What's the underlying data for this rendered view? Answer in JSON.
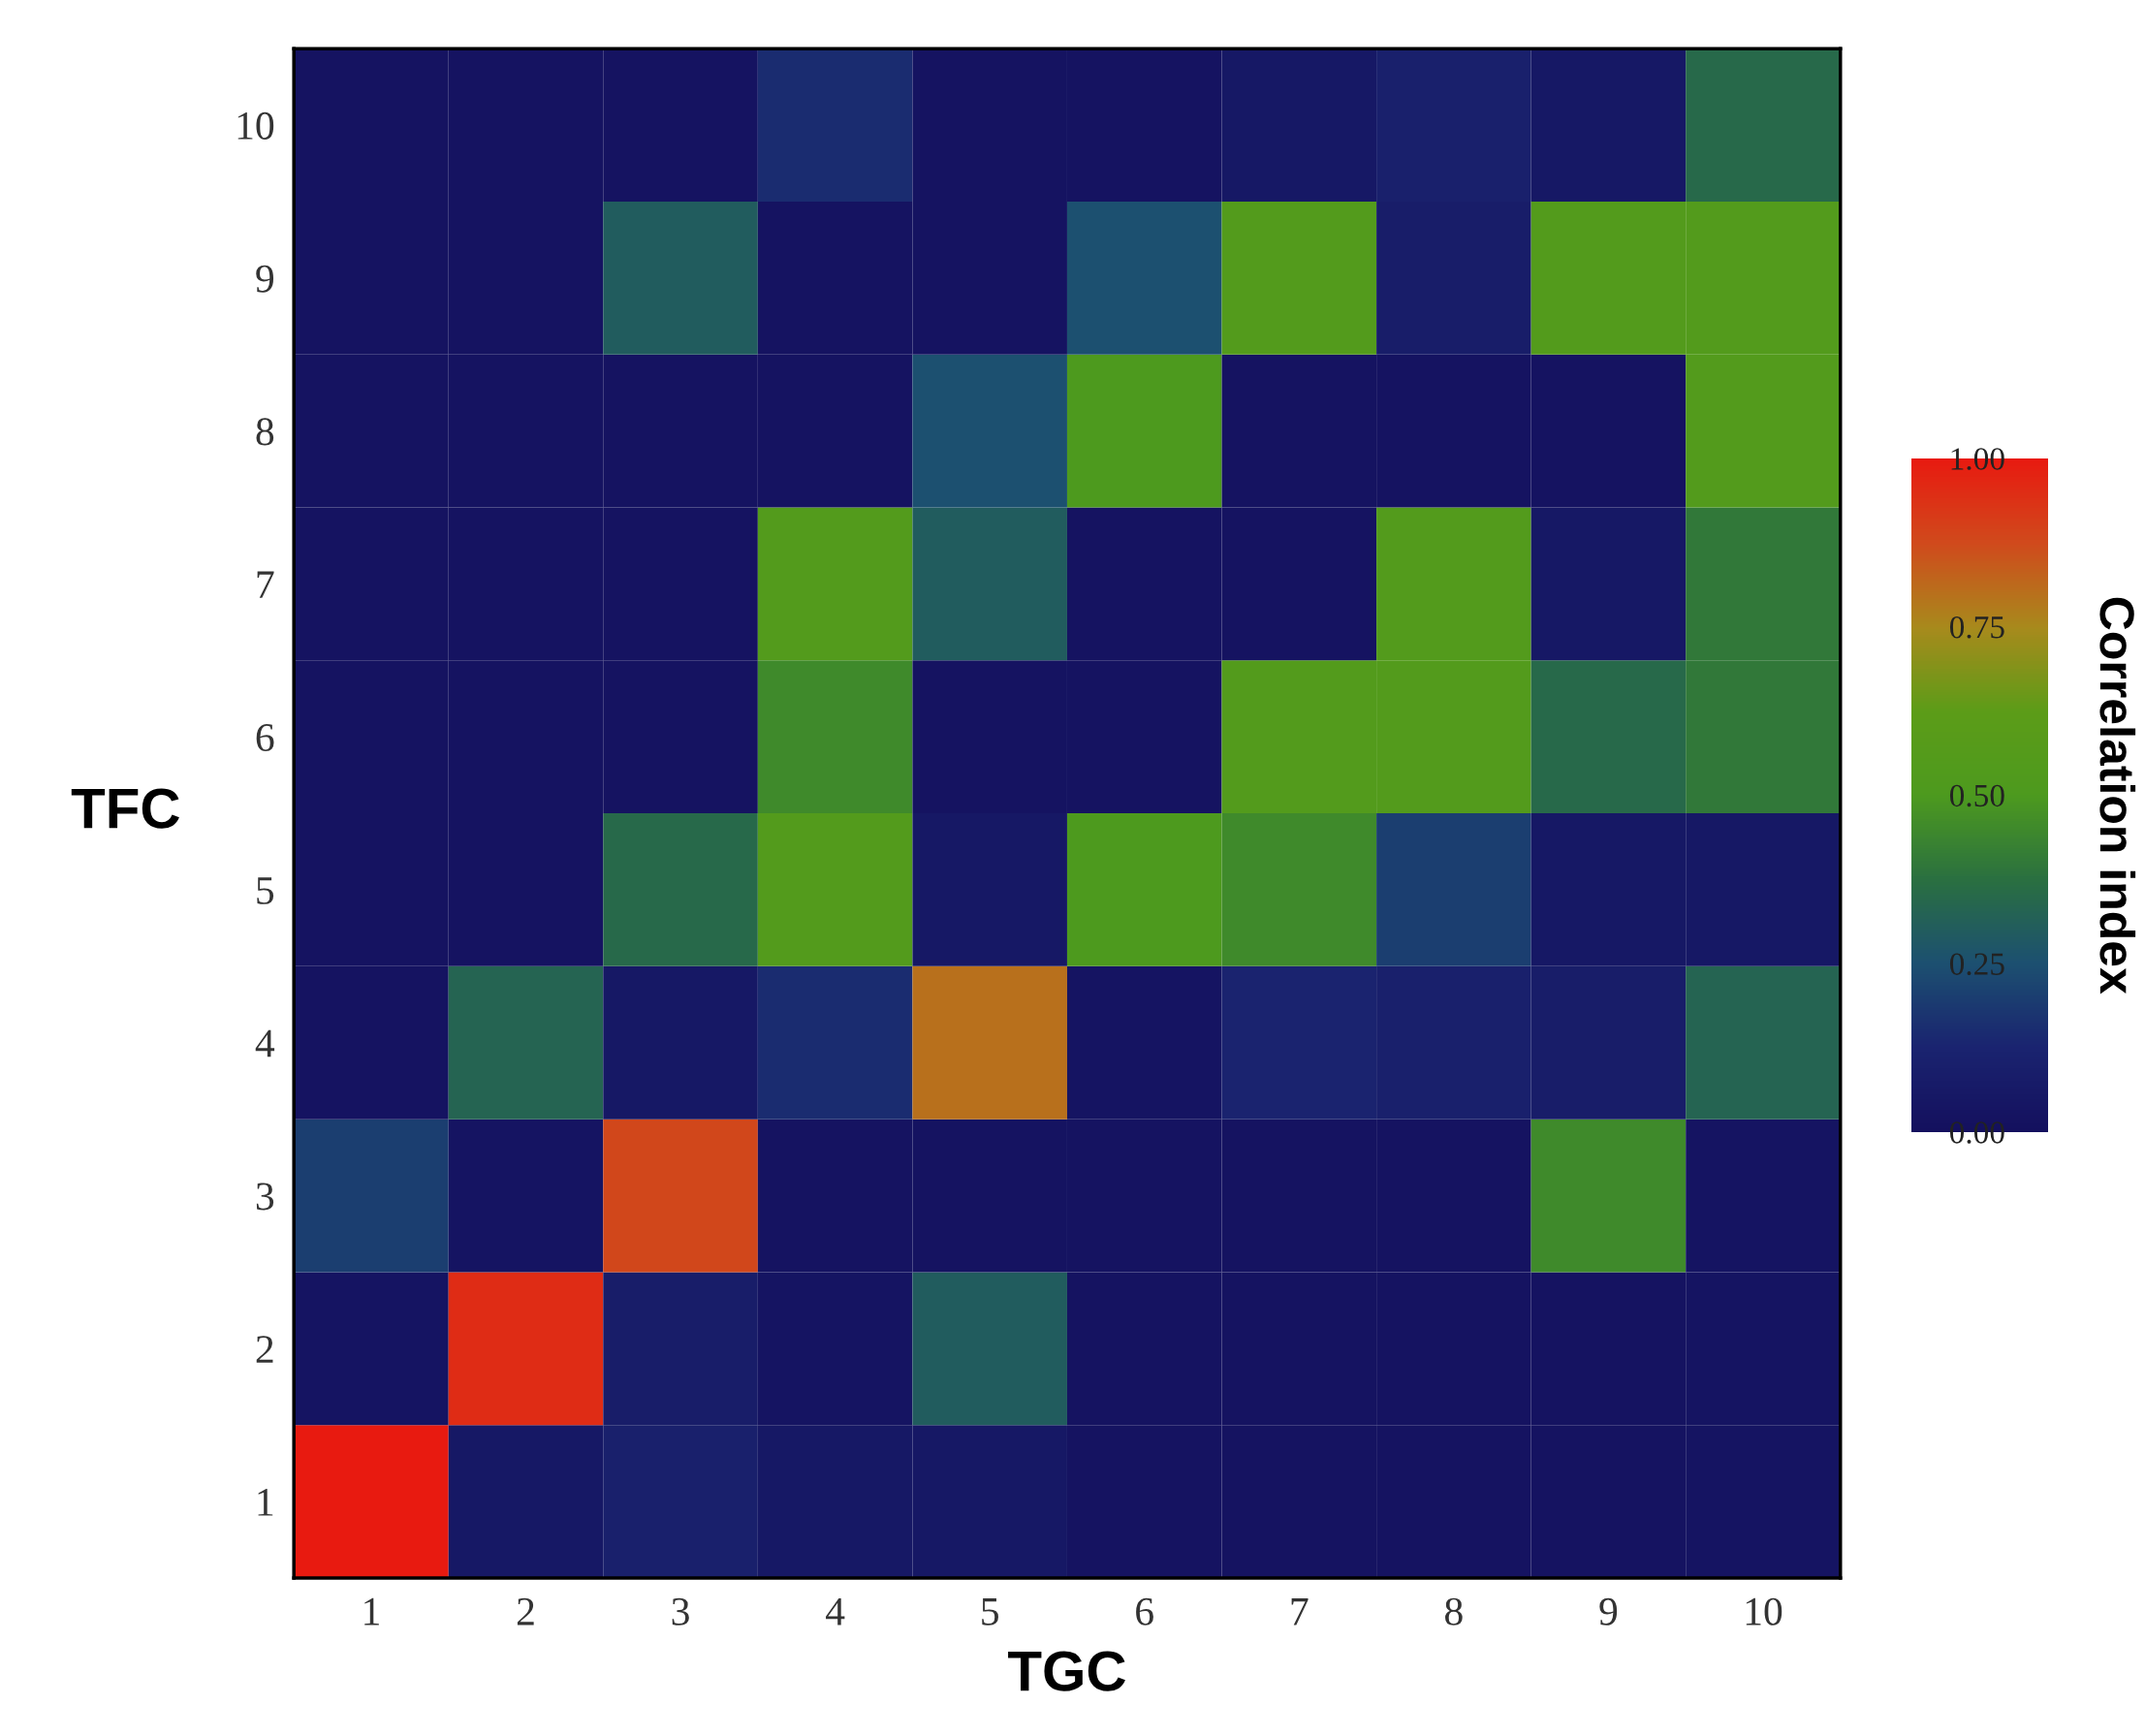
{
  "chart_data": {
    "type": "heatmap",
    "xlabel": "TGC",
    "ylabel": "TFC",
    "clabel": "Correlation index",
    "categories": [
      "1",
      "2",
      "3",
      "4",
      "5",
      "6",
      "7",
      "8",
      "9",
      "10"
    ],
    "y_categories": [
      "10",
      "9",
      "8",
      "7",
      "6",
      "5",
      "4",
      "3",
      "2",
      "1"
    ],
    "cells": [
      [
        0.02,
        0.02,
        0.02,
        0.15,
        0.02,
        0.02,
        0.05,
        0.1,
        0.05,
        0.35
      ],
      [
        0.02,
        0.02,
        0.3,
        0.02,
        0.02,
        0.25,
        0.55,
        0.08,
        0.55,
        0.55
      ],
      [
        0.02,
        0.02,
        0.02,
        0.02,
        0.25,
        0.5,
        0.02,
        0.02,
        0.02,
        0.55
      ],
      [
        0.02,
        0.02,
        0.02,
        0.55,
        0.3,
        0.02,
        0.02,
        0.55,
        0.05,
        0.4
      ],
      [
        0.02,
        0.02,
        0.02,
        0.45,
        0.02,
        0.02,
        0.55,
        0.55,
        0.35,
        0.4
      ],
      [
        0.02,
        0.02,
        0.35,
        0.55,
        0.05,
        0.5,
        0.45,
        0.2,
        0.05,
        0.05
      ],
      [
        0.02,
        0.33,
        0.05,
        0.15,
        0.8,
        0.03,
        0.12,
        0.1,
        0.08,
        0.33
      ],
      [
        0.2,
        0.03,
        0.88,
        0.02,
        0.02,
        0.02,
        0.02,
        0.02,
        0.45,
        0.03
      ],
      [
        0.03,
        0.95,
        0.08,
        0.03,
        0.3,
        0.02,
        0.02,
        0.02,
        0.02,
        0.03
      ],
      [
        1.0,
        0.05,
        0.1,
        0.05,
        0.05,
        0.02,
        0.02,
        0.02,
        0.02,
        0.03
      ]
    ],
    "clim": [
      0,
      1
    ],
    "cticks": [
      {
        "value": 0,
        "label": "0.00"
      },
      {
        "value": 0.25,
        "label": "0.25"
      },
      {
        "value": 0.5,
        "label": "0.50"
      },
      {
        "value": 0.75,
        "label": "0.75"
      },
      {
        "value": 1,
        "label": "1.00"
      }
    ],
    "colors": [
      "#14105e",
      "#1a2470",
      "#1c5070",
      "#2a7040",
      "#4d9a1e",
      "#5c9c18",
      "#a88a1c",
      "#d04a1c",
      "#e81a10"
    ]
  }
}
